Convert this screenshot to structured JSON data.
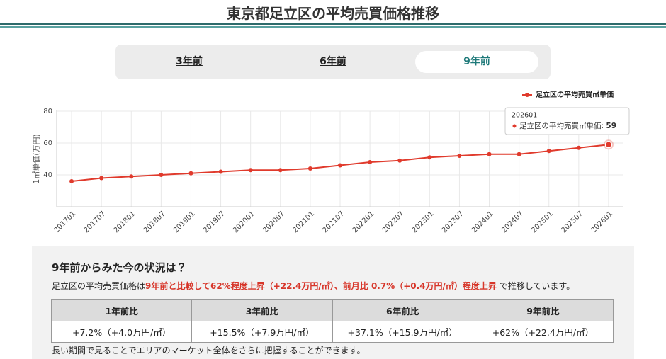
{
  "header": {
    "title": "東京都足立区の平均売買価格推移"
  },
  "tabs": [
    "3年前",
    "6年前",
    "9年前"
  ],
  "active_tab": 2,
  "chart_data": {
    "type": "line",
    "y_label": "1㎡単価(万円)",
    "categories": [
      "201701",
      "201707",
      "201801",
      "201807",
      "201901",
      "201907",
      "202001",
      "202007",
      "202101",
      "202107",
      "202201",
      "202207",
      "202301",
      "202307",
      "202401",
      "202407",
      "202501",
      "202507",
      "202601"
    ],
    "series": [
      {
        "name": "足立区の平均売買㎡単価",
        "color": "#e03a2c",
        "values": [
          36,
          38,
          39,
          40,
          41,
          42,
          43,
          43,
          44,
          46,
          48,
          49,
          51,
          52,
          53,
          53,
          55,
          57,
          59
        ]
      }
    ],
    "ylim": [
      20,
      80
    ],
    "yticks": [
      40,
      60,
      80
    ],
    "grid": true,
    "legend": "top-right",
    "tooltip": {
      "category_index": 18
    }
  },
  "summary": {
    "heading": "9年前からみた今の状況は？",
    "text": [
      "足立区の平均売買価格は",
      "9年前と比較して62%程度上昇（+22.4万円/㎡）、前月比 0.7%（+0.4万円/㎡）程度上昇",
      " で推移しています。"
    ]
  },
  "table": {
    "headers": [
      "1年前比",
      "3年前比",
      "6年前比",
      "9年前比"
    ],
    "rows": [
      [
        "+7.2%（+4.0万円/㎡）",
        "+15.5%（+7.9万円/㎡）",
        "+37.1%（+15.9万円/㎡）",
        "+62%（+22.4万円/㎡）"
      ]
    ]
  },
  "note": "長い期間で見ることでエリアのマーケット全体をさらに把握することができます。"
}
